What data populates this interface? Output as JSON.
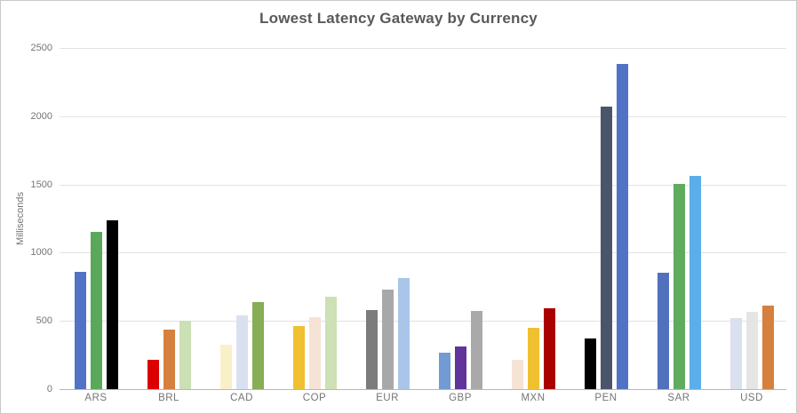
{
  "chart_data": {
    "type": "bar",
    "title": "Lowest Latency Gateway by Currency",
    "xlabel": "",
    "ylabel": "Milliseconds",
    "ylim": [
      0,
      2500
    ],
    "yticks": [
      0,
      500,
      1000,
      1500,
      2000,
      2500
    ],
    "grid": true,
    "legend": false,
    "categories": [
      "ARS",
      "BRL",
      "CAD",
      "COP",
      "EUR",
      "GBP",
      "MXN",
      "PEN",
      "SAR",
      "USD"
    ],
    "groups": [
      {
        "category": "ARS",
        "bars": [
          {
            "value": 860,
            "color": "#5272c4"
          },
          {
            "value": 1150,
            "color": "#5aa85a"
          },
          {
            "value": 1240,
            "color": "#000000"
          }
        ]
      },
      {
        "category": "BRL",
        "bars": [
          {
            "value": 215,
            "color": "#dd0000"
          },
          {
            "value": 435,
            "color": "#d5803e"
          },
          {
            "value": 500,
            "color": "#cbe0b4"
          }
        ]
      },
      {
        "category": "CAD",
        "bars": [
          {
            "value": 325,
            "color": "#f9f0ca"
          },
          {
            "value": 540,
            "color": "#dbe0f0"
          },
          {
            "value": 635,
            "color": "#87ad55"
          }
        ]
      },
      {
        "category": "COP",
        "bars": [
          {
            "value": 460,
            "color": "#f0c030"
          },
          {
            "value": 530,
            "color": "#f5e3d6"
          },
          {
            "value": 675,
            "color": "#cde0b6"
          }
        ]
      },
      {
        "category": "EUR",
        "bars": [
          {
            "value": 580,
            "color": "#7c7c7c"
          },
          {
            "value": 730,
            "color": "#a8a8a8"
          },
          {
            "value": 815,
            "color": "#a9c5e9"
          }
        ]
      },
      {
        "category": "GBP",
        "bars": [
          {
            "value": 265,
            "color": "#719bd3"
          },
          {
            "value": 315,
            "color": "#60349a"
          },
          {
            "value": 570,
            "color": "#a9a9a9"
          }
        ]
      },
      {
        "category": "MXN",
        "bars": [
          {
            "value": 215,
            "color": "#f5e3d6"
          },
          {
            "value": 450,
            "color": "#f0c030"
          },
          {
            "value": 590,
            "color": "#aa0000"
          }
        ]
      },
      {
        "category": "PEN",
        "bars": [
          {
            "value": 370,
            "color": "#000000"
          },
          {
            "value": 2070,
            "color": "#4b5569"
          },
          {
            "value": 2380,
            "color": "#5273c5"
          }
        ]
      },
      {
        "category": "SAR",
        "bars": [
          {
            "value": 850,
            "color": "#5271bd"
          },
          {
            "value": 1505,
            "color": "#5fac5f"
          },
          {
            "value": 1560,
            "color": "#5baee9"
          }
        ]
      },
      {
        "category": "USD",
        "bars": [
          {
            "value": 520,
            "color": "#dbe0ef"
          },
          {
            "value": 565,
            "color": "#e5e5e5"
          },
          {
            "value": 615,
            "color": "#d5803e"
          }
        ]
      }
    ]
  },
  "colors": {
    "background": "#ffffff",
    "card_border": "#c9c9c9",
    "gridline": "#e2e2e2",
    "axis_line": "#b8b8b8",
    "tick_label": "#757575",
    "title": "#595959"
  }
}
